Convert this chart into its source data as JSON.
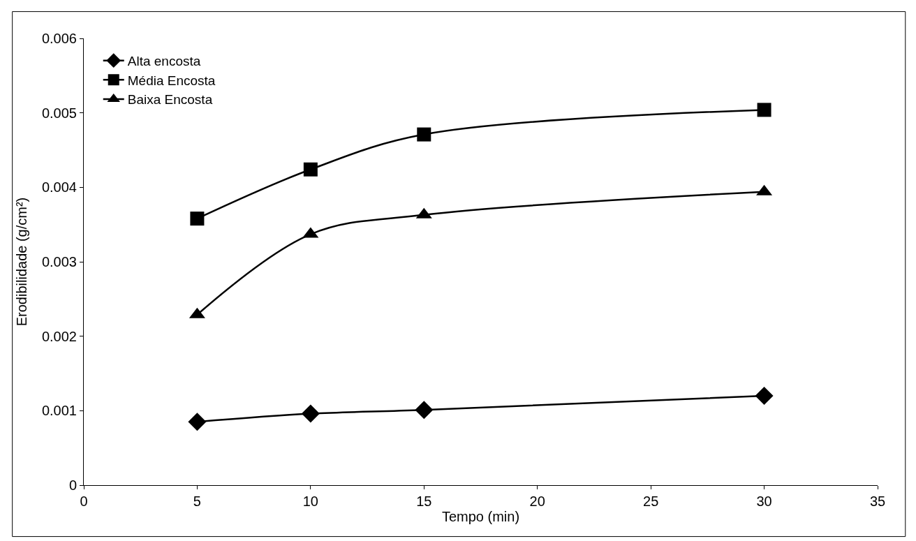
{
  "chart_data": {
    "type": "line",
    "xlabel": "Tempo (min)",
    "ylabel": "Erodibilidade (g/cm²)",
    "x": [
      5,
      10,
      15,
      30
    ],
    "series": [
      {
        "name": "Alta encosta",
        "color": "#000000",
        "marker": "diamond",
        "values": [
          0.00085,
          0.00096,
          0.00101,
          0.0012
        ]
      },
      {
        "name": "Média Encosta",
        "color": "#000000",
        "marker": "square",
        "values": [
          0.00358,
          0.00424,
          0.00471,
          0.00504
        ]
      },
      {
        "name": "Baixa Encosta",
        "color": "#000000",
        "marker": "triangle",
        "values": [
          0.00229,
          0.00337,
          0.00363,
          0.00394
        ]
      }
    ],
    "xlim": [
      0,
      35
    ],
    "xticks": [
      0,
      5,
      10,
      15,
      20,
      25,
      30,
      35
    ],
    "ylim": [
      0,
      0.006
    ],
    "yticks": [
      0,
      0.001,
      0.002,
      0.003,
      0.004,
      0.005,
      0.006
    ],
    "legend": "top left",
    "line_style": "solid"
  }
}
